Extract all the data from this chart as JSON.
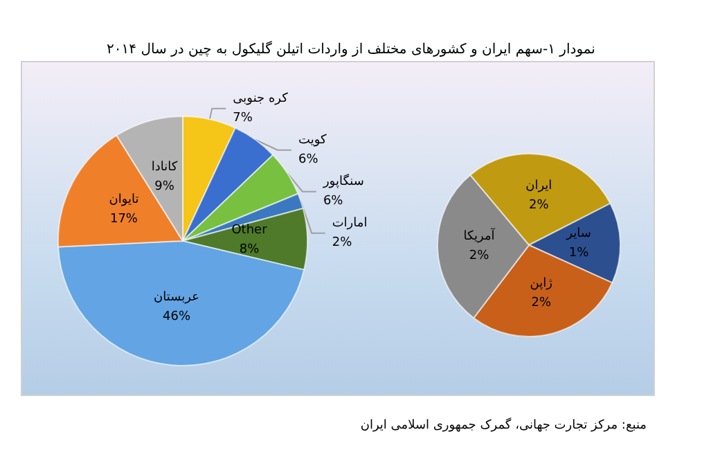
{
  "chart_data": [
    {
      "type": "pie",
      "title": "نمودار ۱-سهم ایران و کشورهای مختلف از واردات اتیلن گلیکول به چین در سال ۲۰۱۴",
      "categories": [
        "کره جنوبی",
        "کویت",
        "سنگاپور",
        "امارات",
        "Other",
        "عربستان",
        "تایوان",
        "کانادا"
      ],
      "values": [
        7,
        6,
        6,
        2,
        8,
        46,
        17,
        9
      ],
      "value_labels": [
        "7%",
        "6%",
        "6%",
        "2%",
        "8%",
        "46%",
        "17%",
        "9%"
      ],
      "colors": [
        "#f5c518",
        "#3a6fd0",
        "#78c040",
        "#3a78c0",
        "#4e7a2a",
        "#62a4e4",
        "#f07f2a",
        "#b4b4b4"
      ],
      "legend": false,
      "annotations": [
        "منبع: مرکز تجارت جهانی، گمرک جمهوری اسلامی ایران"
      ]
    },
    {
      "type": "pie",
      "categories": [
        "ایران",
        "سایر",
        "ژاپن",
        "آمریکا"
      ],
      "values": [
        2,
        1,
        2,
        2
      ],
      "value_labels": [
        "2%",
        "1%",
        "2%",
        "2%"
      ],
      "colors": [
        "#c09a10",
        "#2c4f90",
        "#c8601a",
        "#8a8a8a"
      ],
      "legend": false
    }
  ]
}
